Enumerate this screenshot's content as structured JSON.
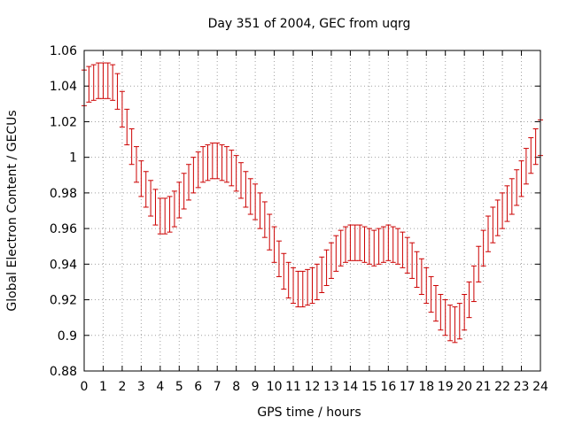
{
  "chart_data": {
    "type": "scatter",
    "title": "Day 351 of 2004, GEC from uqrg",
    "xlabel": "GPS time / hours",
    "ylabel": "Global Electron Content / GECUs",
    "xlim": [
      0,
      24
    ],
    "ylim": [
      0.88,
      1.06
    ],
    "grid": true,
    "xticks": [
      "0",
      "1",
      "2",
      "3",
      "4",
      "5",
      "6",
      "7",
      "8",
      "9",
      "10",
      "11",
      "12",
      "13",
      "14",
      "15",
      "16",
      "17",
      "18",
      "19",
      "20",
      "21",
      "22",
      "23",
      "24"
    ],
    "yticks": [
      "0.88",
      "0.9",
      "0.92",
      "0.94",
      "0.96",
      "0.98",
      "1",
      "1.02",
      "1.04",
      "1.06"
    ],
    "series": [
      {
        "name": "GEC",
        "color": "#cc0000",
        "error": 0.01,
        "x": [
          0,
          0.25,
          0.5,
          0.75,
          1,
          1.25,
          1.5,
          1.75,
          2,
          2.25,
          2.5,
          2.75,
          3,
          3.25,
          3.5,
          3.75,
          4,
          4.25,
          4.5,
          4.75,
          5,
          5.25,
          5.5,
          5.75,
          6,
          6.25,
          6.5,
          6.75,
          7,
          7.25,
          7.5,
          7.75,
          8,
          8.25,
          8.5,
          8.75,
          9,
          9.25,
          9.5,
          9.75,
          10,
          10.25,
          10.5,
          10.75,
          11,
          11.25,
          11.5,
          11.75,
          12,
          12.25,
          12.5,
          12.75,
          13,
          13.25,
          13.5,
          13.75,
          14,
          14.25,
          14.5,
          14.75,
          15,
          15.25,
          15.5,
          15.75,
          16,
          16.25,
          16.5,
          16.75,
          17,
          17.25,
          17.5,
          17.75,
          18,
          18.25,
          18.5,
          18.75,
          19,
          19.25,
          19.5,
          19.75,
          20,
          20.25,
          20.5,
          20.75,
          21,
          21.25,
          21.5,
          21.75,
          22,
          22.25,
          22.5,
          22.75,
          23,
          23.25,
          23.5,
          23.75,
          24
        ],
        "y": [
          1.039,
          1.041,
          1.042,
          1.043,
          1.043,
          1.043,
          1.042,
          1.037,
          1.027,
          1.017,
          1.006,
          0.996,
          0.988,
          0.982,
          0.977,
          0.972,
          0.967,
          0.967,
          0.968,
          0.971,
          0.976,
          0.981,
          0.986,
          0.99,
          0.993,
          0.996,
          0.997,
          0.998,
          0.998,
          0.997,
          0.996,
          0.994,
          0.991,
          0.987,
          0.982,
          0.978,
          0.975,
          0.97,
          0.965,
          0.958,
          0.951,
          0.943,
          0.936,
          0.931,
          0.928,
          0.926,
          0.926,
          0.927,
          0.928,
          0.93,
          0.934,
          0.938,
          0.942,
          0.946,
          0.949,
          0.951,
          0.952,
          0.952,
          0.952,
          0.951,
          0.95,
          0.949,
          0.95,
          0.951,
          0.952,
          0.951,
          0.95,
          0.948,
          0.945,
          0.942,
          0.937,
          0.933,
          0.928,
          0.923,
          0.918,
          0.913,
          0.91,
          0.907,
          0.906,
          0.908,
          0.913,
          0.92,
          0.929,
          0.94,
          0.949,
          0.957,
          0.962,
          0.966,
          0.97,
          0.974,
          0.978,
          0.983,
          0.988,
          0.995,
          1.001,
          1.006,
          1.011
        ]
      }
    ]
  }
}
